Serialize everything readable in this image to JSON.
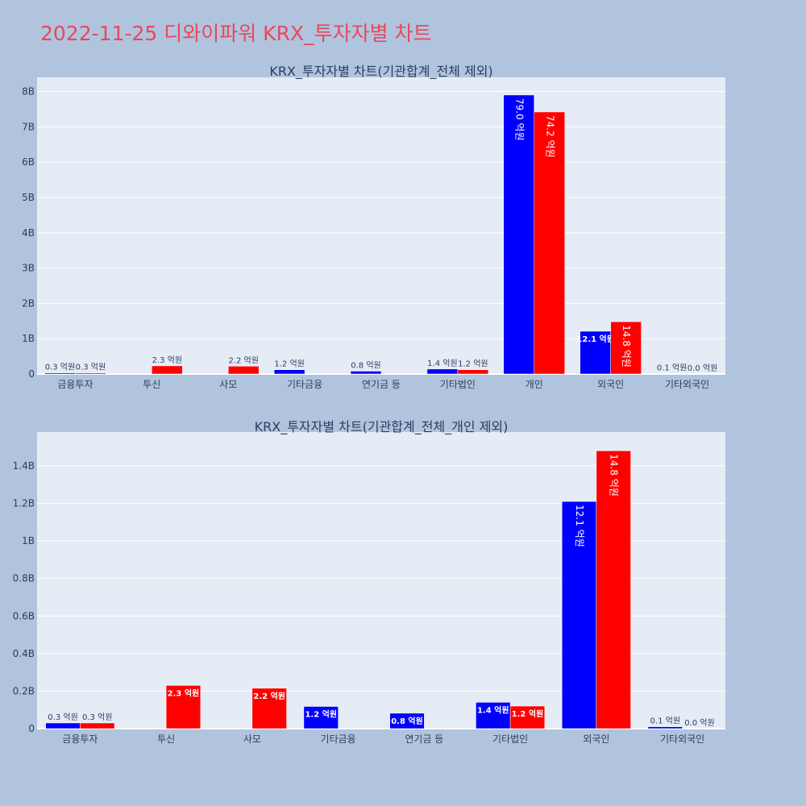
{
  "page": {
    "title": "2022-11-25 디와이파워 KRX_투자자별 차트",
    "background": "#b0c4de",
    "title_color": "#e9485a"
  },
  "chart_data": [
    {
      "type": "bar",
      "title": "KRX_투자자별 차트(기관합계_전체 제외)",
      "categories": [
        "금융투자",
        "투신",
        "사모",
        "기타금융",
        "연기금 등",
        "기타법인",
        "개인",
        "외국인",
        "기타외국인"
      ],
      "series": [
        {
          "color": "#0000ff",
          "values": [
            30000000.0,
            0,
            0,
            120000000.0,
            80000000.0,
            140000000.0,
            7900000000.0,
            1210000000.0,
            10000000.0
          ],
          "labels": [
            "0.3 억원",
            "",
            "",
            "1.2 억원",
            "0.8 억원",
            "1.4 억원",
            "79.0 억원",
            "12.1 억원",
            "0.1 억원"
          ]
        },
        {
          "color": "#ff0000",
          "values": [
            30000000.0,
            230000000.0,
            220000000.0,
            0,
            0,
            120000000.0,
            7420000000.0,
            1480000000.0,
            0.0
          ],
          "labels": [
            "0.3 억원",
            "2.3 억원",
            "2.2 억원",
            "",
            "",
            "1.2 억원",
            "74.2 억원",
            "14.8 억원",
            "0.0 억원"
          ]
        }
      ],
      "ylim": [
        0,
        8400000000.0
      ],
      "yticks": [
        0,
        1000000000.0,
        2000000000.0,
        3000000000.0,
        4000000000.0,
        5000000000.0,
        6000000000.0,
        7000000000.0,
        8000000000.0
      ],
      "ytick_labels": [
        "0",
        "1B",
        "2B",
        "3B",
        "4B",
        "5B",
        "6B",
        "7B",
        "8B"
      ],
      "grid": true,
      "plot_background": "#e5ecf6"
    },
    {
      "type": "bar",
      "title": "KRX_투자자별 차트(기관합계_전체_개인 제외)",
      "categories": [
        "금융투자",
        "투신",
        "사모",
        "기타금융",
        "연기금 등",
        "기타법인",
        "외국인",
        "기타외국인"
      ],
      "series": [
        {
          "color": "#0000ff",
          "values": [
            30000000.0,
            0,
            0,
            118000000.0,
            82000000.0,
            140000000.0,
            1210000000.0,
            10000000.0
          ],
          "labels": [
            "0.3 억원",
            "",
            "",
            "1.2 억원",
            "0.8 억원",
            "1.4 억원",
            "12.1 억원",
            "0.1 억원"
          ]
        },
        {
          "color": "#ff0000",
          "values": [
            30000000.0,
            230000000.0,
            215000000.0,
            0,
            0,
            120000000.0,
            1480000000.0,
            1000000.0
          ],
          "labels": [
            "0.3 억원",
            "2.3 억원",
            "2.2 억원",
            "",
            "",
            "1.2 억원",
            "14.8 억원",
            "0.0 억원"
          ]
        }
      ],
      "ylim": [
        0,
        1580000000.0
      ],
      "yticks": [
        0,
        200000000.0,
        400000000.0,
        600000000.0,
        800000000.0,
        1000000000.0,
        1200000000.0,
        1400000000.0
      ],
      "ytick_labels": [
        "0",
        "0.2B",
        "0.4B",
        "0.6B",
        "0.8B",
        "1B",
        "1.2B",
        "1.4B"
      ],
      "grid": true,
      "plot_background": "#e5ecf6"
    }
  ]
}
